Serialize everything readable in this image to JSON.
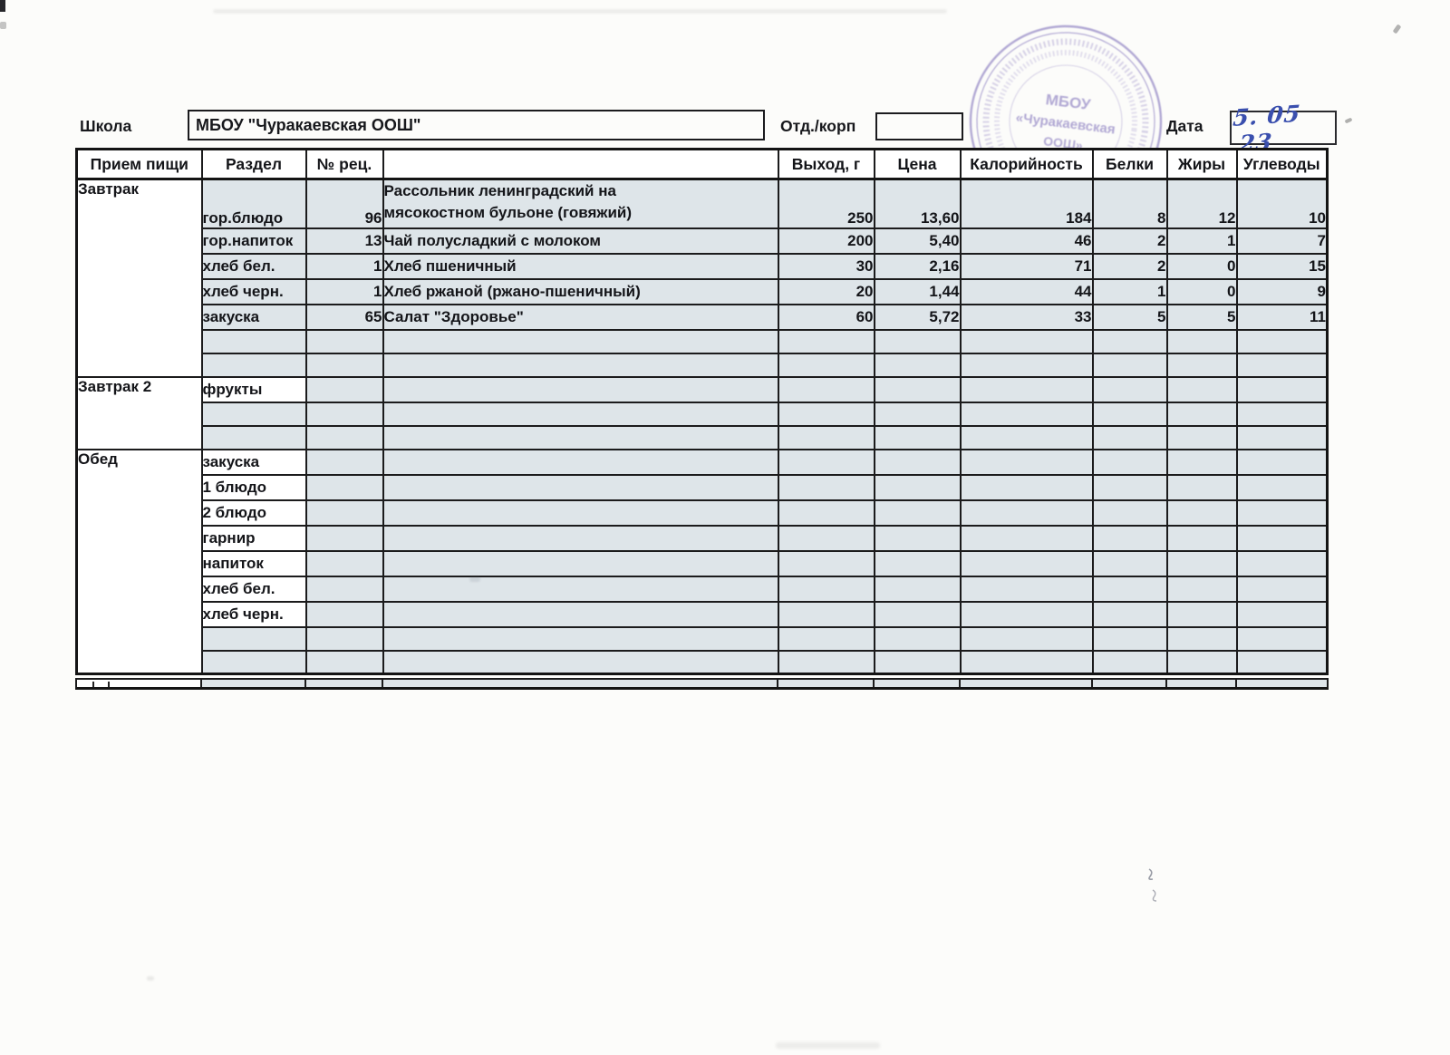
{
  "document": {
    "school_label": "Школа",
    "school_name": "МБОУ \"Чуракаевская ООШ\"",
    "dept_label": "Отд./корп",
    "dept_value": "",
    "date_label": "Дата",
    "date_value": "5. 05 .23"
  },
  "stamp": {
    "line1": "МБОУ",
    "line2": "«Чуракаевская",
    "line3": "ООШ»",
    "color": "#7b6cb8"
  },
  "colors": {
    "cell_shade": "#dee5e9",
    "table_ink": "#141414",
    "pen_blue": "#3a4fae"
  },
  "table": {
    "headers": [
      "Прием пищи",
      "Раздел",
      "№ рец.",
      "",
      "Выход, г",
      "Цена",
      "Калорийность",
      "Белки",
      "Жиры",
      "Углеводы"
    ],
    "sections": [
      {
        "meal": "Завтрак",
        "rows": [
          [
            "гор.блюдо",
            "96",
            "Рассольник ленинградский на мясокостном бульоне (говяжий)",
            "250",
            "13,60",
            "184",
            "8",
            "12",
            "10"
          ],
          [
            "гор.напиток",
            "13",
            "Чай полусладкий с молоком",
            "200",
            "5,40",
            "46",
            "2",
            "1",
            "7"
          ],
          [
            "хлеб бел.",
            "1",
            "Хлеб пшеничный",
            "30",
            "2,16",
            "71",
            "2",
            "0",
            "15"
          ],
          [
            "хлеб черн.",
            "1",
            "Хлеб ржаной (ржано-пшеничный)",
            "20",
            "1,44",
            "44",
            "1",
            "0",
            "9"
          ],
          [
            "закуска",
            "65",
            "Салат \"Здоровье\"",
            "60",
            "5,72",
            "33",
            "5",
            "5",
            "11"
          ],
          [],
          []
        ]
      },
      {
        "meal": "Завтрак 2",
        "rows": [
          [
            "фрукты"
          ],
          [],
          []
        ]
      },
      {
        "meal": "Обед",
        "rows": [
          [
            "закуска"
          ],
          [
            "1 блюдо"
          ],
          [
            "2 блюдо"
          ],
          [
            "гарнир"
          ],
          [
            "напиток"
          ],
          [
            "хлеб бел."
          ],
          [
            "хлеб черн."
          ],
          [],
          []
        ]
      }
    ]
  }
}
